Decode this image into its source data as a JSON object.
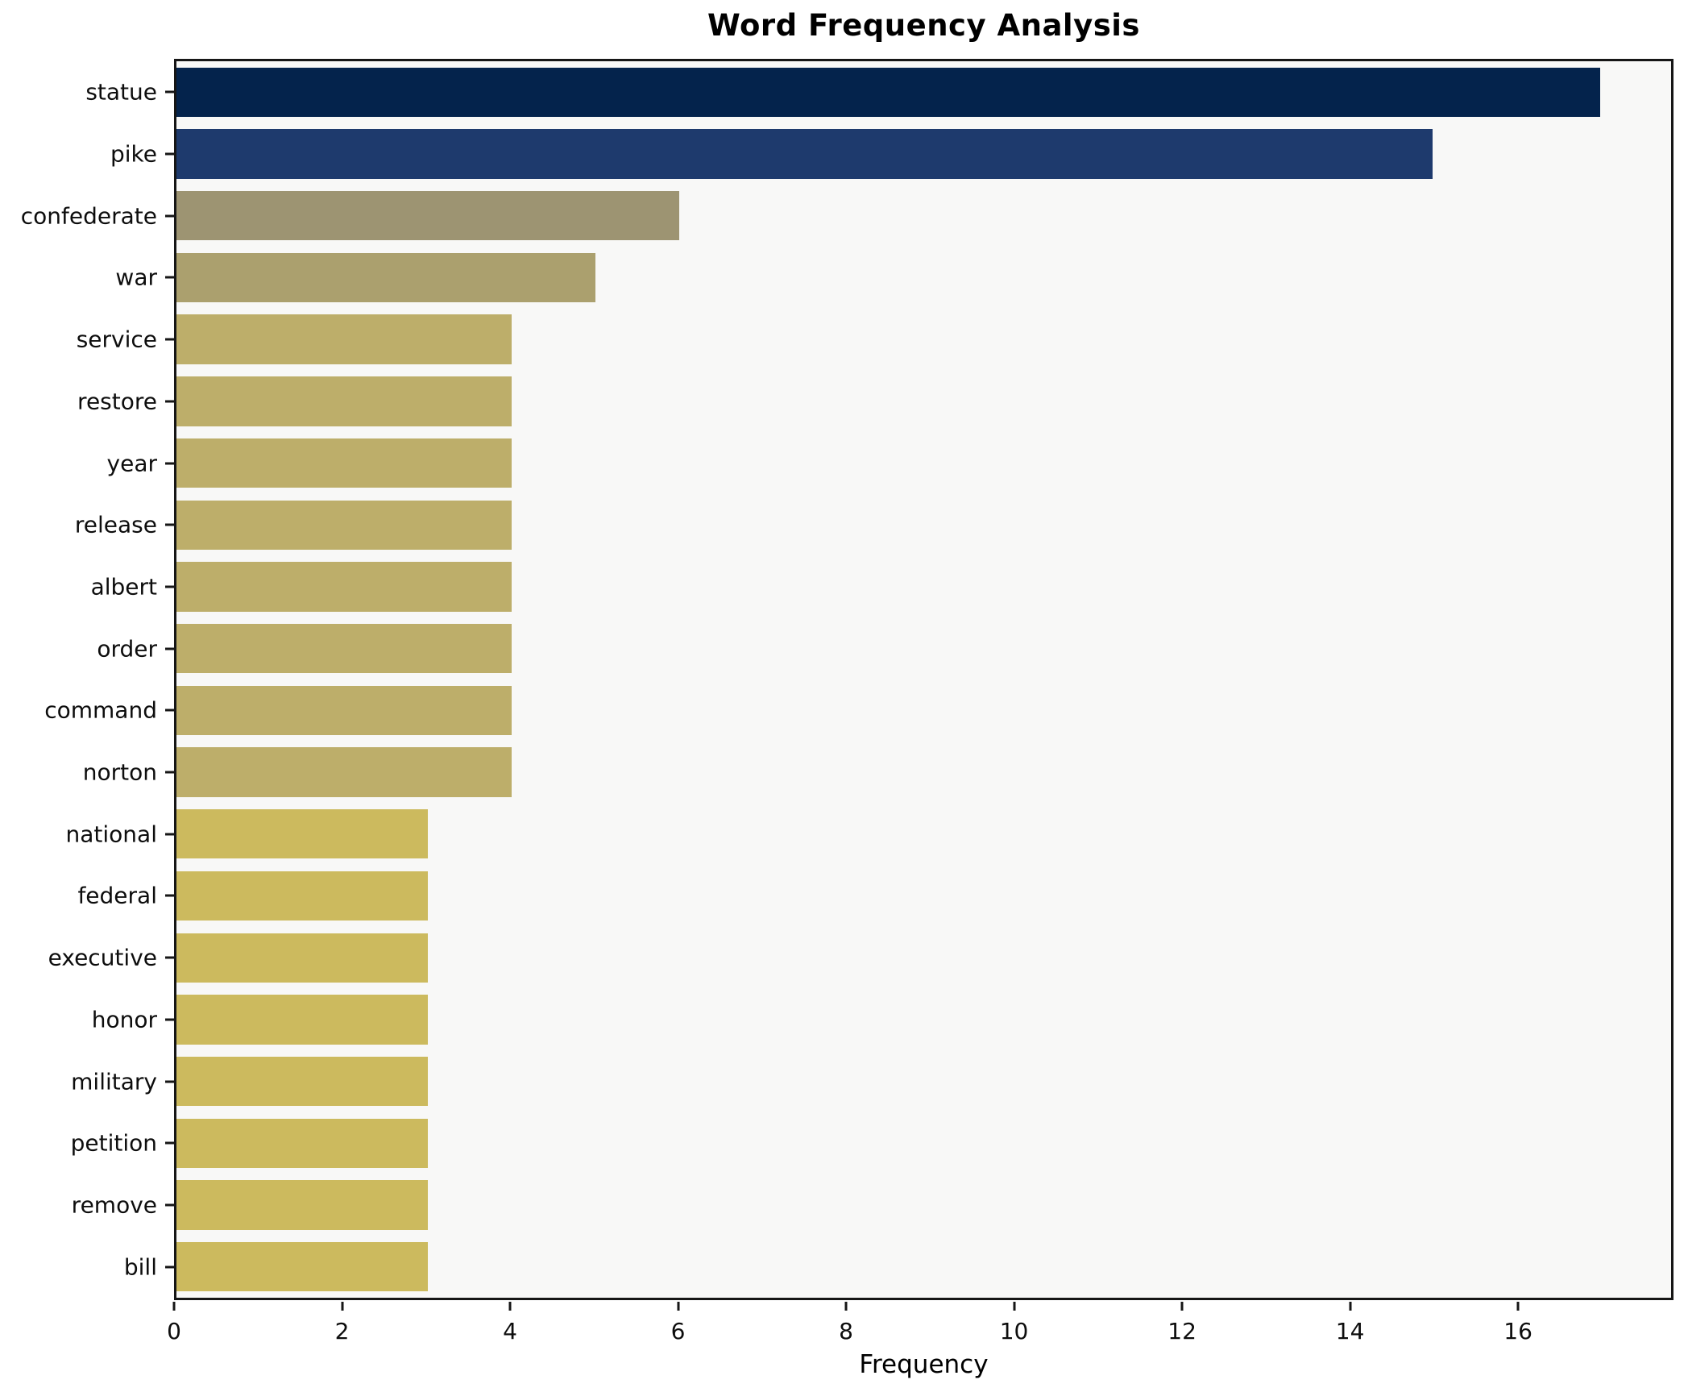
{
  "page": {
    "title": "Word Frequency Analysis"
  },
  "chart_data": {
    "type": "bar",
    "orientation": "horizontal",
    "title": "Word Frequency Analysis",
    "xlabel": "Frequency",
    "ylabel": "",
    "categories": [
      "statue",
      "pike",
      "confederate",
      "war",
      "service",
      "restore",
      "year",
      "release",
      "albert",
      "order",
      "command",
      "norton",
      "national",
      "federal",
      "executive",
      "honor",
      "military",
      "petition",
      "remove",
      "bill"
    ],
    "values": [
      17,
      15,
      6,
      5,
      4,
      4,
      4,
      4,
      4,
      4,
      4,
      4,
      3,
      3,
      3,
      3,
      3,
      3,
      3,
      3
    ],
    "bar_colors": [
      "#04234c",
      "#1e3a6d",
      "#9d9472",
      "#aba06e",
      "#bdae6a",
      "#bdae6a",
      "#bdae6a",
      "#bdae6a",
      "#bdae6a",
      "#bdae6a",
      "#bdae6a",
      "#bdae6a",
      "#ccba5e",
      "#ccba5e",
      "#ccba5e",
      "#ccba5e",
      "#ccba5e",
      "#ccba5e",
      "#ccba5e",
      "#ccba5e"
    ],
    "xlim": [
      0,
      17.85
    ],
    "xticks": [
      0,
      2,
      4,
      6,
      8,
      10,
      12,
      14,
      16
    ],
    "grid": false,
    "legend_position": "none",
    "plot_background": "#f8f8f7",
    "figure_background": "#ffffff",
    "spine_color": "#161616",
    "text_color": "#0d0d0d"
  }
}
